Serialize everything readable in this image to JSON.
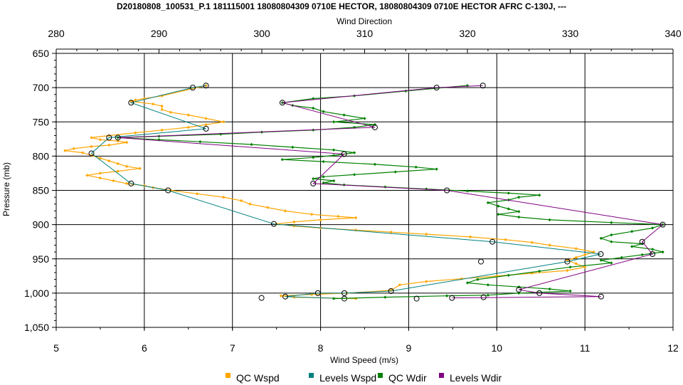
{
  "chart_data": {
    "type": "line",
    "title": "D20180808_100531_P.1 181115001 18080804309 0710E HECTOR, 18080804309 0710E HECTOR AFRC C-130J, ---",
    "xlabel": "Wind Speed (m/s)",
    "x2label": "Wind Direction",
    "ylabel": "Pressure (mb)",
    "xlim": [
      5,
      12
    ],
    "x2lim": [
      280,
      340
    ],
    "ylim": [
      650,
      1050
    ],
    "y_inverted": true,
    "grid": true,
    "legend_position": "bottom",
    "x_ticks": [
      "5",
      "6",
      "7",
      "8",
      "9",
      "10",
      "11",
      "12"
    ],
    "x2_ticks": [
      "280",
      "290",
      "300",
      "310",
      "320",
      "330",
      "340"
    ],
    "y_ticks": [
      "650",
      "700",
      "750",
      "800",
      "850",
      "900",
      "950",
      "1,000",
      "1,050"
    ],
    "series": [
      {
        "name": "QC Wspd",
        "axis": "x",
        "color": "#ffa500",
        "marker": "diamond",
        "points": [
          [
            6.7,
            697
          ],
          [
            6.2,
            712
          ],
          [
            6.0,
            716
          ],
          [
            5.9,
            718
          ],
          [
            5.85,
            720
          ],
          [
            6.1,
            724
          ],
          [
            6.2,
            727
          ],
          [
            6.2,
            732
          ],
          [
            6.3,
            736
          ],
          [
            6.5,
            740
          ],
          [
            6.7,
            745
          ],
          [
            6.9,
            750
          ],
          [
            6.7,
            754
          ],
          [
            6.5,
            758
          ],
          [
            6.2,
            762
          ],
          [
            5.9,
            766
          ],
          [
            5.6,
            770
          ],
          [
            5.4,
            773
          ],
          [
            5.5,
            776
          ],
          [
            5.7,
            778
          ],
          [
            5.8,
            780
          ],
          [
            5.6,
            784
          ],
          [
            5.4,
            786
          ],
          [
            5.2,
            789
          ],
          [
            5.1,
            792
          ],
          [
            5.3,
            795
          ],
          [
            5.4,
            799
          ],
          [
            5.5,
            803
          ],
          [
            5.6,
            807
          ],
          [
            5.7,
            811
          ],
          [
            5.8,
            815
          ],
          [
            5.95,
            818
          ],
          [
            5.7,
            822
          ],
          [
            5.5,
            825
          ],
          [
            5.35,
            828
          ],
          [
            5.5,
            832
          ],
          [
            5.65,
            836
          ],
          [
            5.8,
            840
          ],
          [
            6.0,
            843
          ],
          [
            6.1,
            846
          ],
          [
            6.3,
            850
          ],
          [
            6.6,
            855
          ],
          [
            6.9,
            860
          ],
          [
            7.1,
            865
          ],
          [
            7.2,
            870
          ],
          [
            7.4,
            875
          ],
          [
            7.6,
            880
          ],
          [
            7.9,
            885
          ],
          [
            8.2,
            888
          ],
          [
            8.4,
            890
          ],
          [
            8.0,
            893
          ],
          [
            7.7,
            896
          ],
          [
            7.5,
            899
          ],
          [
            7.7,
            902
          ],
          [
            8.0,
            905
          ],
          [
            8.4,
            908
          ],
          [
            8.8,
            911
          ],
          [
            9.2,
            914
          ],
          [
            9.7,
            918
          ],
          [
            10.1,
            922
          ],
          [
            10.4,
            926
          ],
          [
            10.6,
            930
          ],
          [
            10.9,
            935
          ],
          [
            11.1,
            940
          ],
          [
            11.0,
            944
          ],
          [
            10.9,
            948
          ],
          [
            10.8,
            952
          ],
          [
            10.9,
            957
          ],
          [
            11.0,
            962
          ],
          [
            10.8,
            967
          ],
          [
            10.4,
            971
          ],
          [
            10.0,
            975
          ],
          [
            9.6,
            979
          ],
          [
            9.2,
            983
          ],
          [
            8.9,
            988
          ],
          [
            8.8,
            996
          ],
          [
            8.3,
            1000
          ],
          [
            7.9,
            1002
          ],
          [
            7.55,
            1004
          ],
          [
            7.7,
            1006
          ],
          [
            8.4,
            1008
          ]
        ]
      },
      {
        "name": "Levels Wspd",
        "axis": "x",
        "color": "#008080",
        "marker": "circle",
        "points": [
          [
            6.7,
            697
          ],
          [
            6.55,
            700
          ],
          [
            5.85,
            722
          ],
          [
            6.7,
            760
          ],
          [
            5.6,
            773
          ],
          [
            5.4,
            796
          ],
          [
            5.85,
            840
          ],
          [
            6.27,
            850
          ],
          [
            7.47,
            899
          ],
          [
            9.95,
            925
          ],
          [
            11.18,
            943
          ],
          [
            10.8,
            954
          ],
          [
            8.8,
            997
          ],
          [
            8.27,
            1000
          ],
          [
            7.97,
            1000
          ],
          [
            7.6,
            1005
          ],
          [
            8.27,
            1008
          ]
        ]
      },
      {
        "name": "QC Wdir",
        "axis": "x2",
        "color": "#008000",
        "marker": "diamond",
        "points": [
          [
            320,
            697
          ],
          [
            314,
            705
          ],
          [
            309,
            712
          ],
          [
            305,
            716
          ],
          [
            302,
            722
          ],
          [
            303,
            726
          ],
          [
            305,
            730
          ],
          [
            306,
            735
          ],
          [
            308,
            740
          ],
          [
            310,
            745
          ],
          [
            307,
            750
          ],
          [
            311,
            754
          ],
          [
            309,
            758
          ],
          [
            305,
            762
          ],
          [
            300,
            765
          ],
          [
            296,
            768
          ],
          [
            290,
            771
          ],
          [
            286,
            773
          ],
          [
            290,
            776
          ],
          [
            294,
            779
          ],
          [
            299,
            783
          ],
          [
            303,
            787
          ],
          [
            307,
            791
          ],
          [
            309,
            795
          ],
          [
            307,
            799
          ],
          [
            305,
            802
          ],
          [
            302,
            805
          ],
          [
            306,
            808
          ],
          [
            311,
            812
          ],
          [
            315,
            816
          ],
          [
            317,
            819
          ],
          [
            313,
            823
          ],
          [
            309,
            827
          ],
          [
            306,
            830
          ],
          [
            305,
            833
          ],
          [
            307,
            836
          ],
          [
            306,
            839
          ],
          [
            308,
            842
          ],
          [
            312,
            845
          ],
          [
            316,
            848
          ],
          [
            320,
            851
          ],
          [
            324,
            854
          ],
          [
            327,
            857
          ],
          [
            325,
            860
          ],
          [
            324,
            864
          ],
          [
            322,
            868
          ],
          [
            323,
            873
          ],
          [
            324,
            877
          ],
          [
            325,
            881
          ],
          [
            323,
            885
          ],
          [
            325,
            889
          ],
          [
            328,
            893
          ],
          [
            334,
            897
          ],
          [
            339,
            900
          ],
          [
            338,
            905
          ],
          [
            336,
            910
          ],
          [
            334,
            915
          ],
          [
            333,
            920
          ],
          [
            334,
            925
          ],
          [
            337,
            928
          ],
          [
            336,
            932
          ],
          [
            338,
            936
          ],
          [
            339,
            940
          ],
          [
            337,
            944
          ],
          [
            335,
            948
          ],
          [
            333,
            952
          ],
          [
            334,
            956
          ],
          [
            330,
            962
          ],
          [
            327,
            968
          ],
          [
            324,
            974
          ],
          [
            321,
            980
          ],
          [
            320,
            985
          ],
          [
            322,
            988
          ],
          [
            325,
            991
          ],
          [
            328,
            994
          ],
          [
            330,
            997
          ],
          [
            325,
            1000
          ],
          [
            322,
            1003
          ],
          [
            318,
            1004
          ],
          [
            312,
            1006
          ],
          [
            307,
            1008
          ]
        ]
      },
      {
        "name": "Levels Wdir",
        "axis": "x2",
        "color": "#800080",
        "marker": "circle",
        "points": [
          [
            321.5,
            697
          ],
          [
            317,
            700
          ],
          [
            302,
            722
          ],
          [
            311,
            758
          ],
          [
            286,
            773
          ],
          [
            308,
            797
          ],
          [
            305,
            840
          ],
          [
            318,
            850
          ],
          [
            339,
            900
          ],
          [
            337,
            925
          ],
          [
            338,
            943
          ],
          [
            325,
            995
          ],
          [
            327,
            1000
          ],
          [
            333,
            1005
          ],
          [
            318.5,
            1007
          ]
        ]
      }
    ],
    "extra_markers": [
      {
        "series": "Levels Wspd",
        "x": 7.33,
        "y": 1007
      },
      {
        "series": "Levels Wdir",
        "x": 9.82,
        "y": 954
      },
      {
        "series": "Levels Wdir",
        "x": 9.85,
        "y": 1006
      },
      {
        "series": "Levels Wdir",
        "x": 9.09,
        "y": 1008
      }
    ]
  }
}
